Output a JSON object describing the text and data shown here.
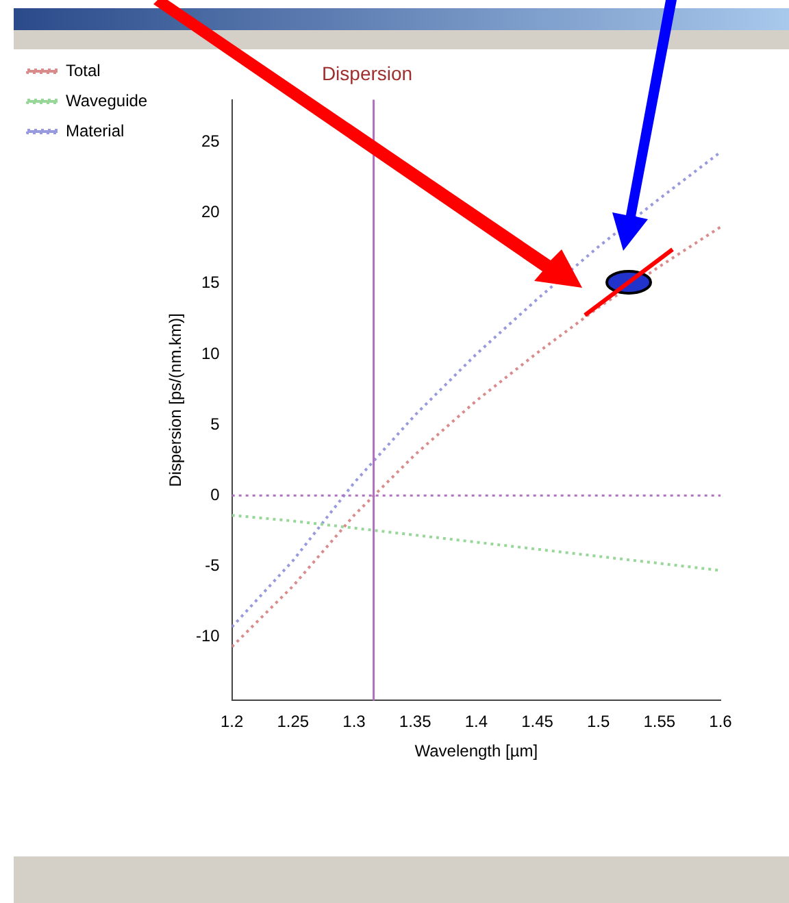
{
  "chart_data": {
    "type": "line",
    "title": "Dispersion",
    "xlabel": "Wavelength [µm]",
    "ylabel": "Dispersion [ps/(nm.km)]",
    "x": [
      1.2,
      1.25,
      1.3,
      1.35,
      1.4,
      1.45,
      1.5,
      1.55,
      1.6
    ],
    "series": [
      {
        "name": "Total",
        "color": "#d98c8c",
        "values": [
          -10.7,
          -6.4,
          -1.4,
          2.9,
          6.7,
          10.1,
          13.3,
          16.2,
          19.0
        ]
      },
      {
        "name": "Waveguide",
        "color": "#99d699",
        "values": [
          -1.4,
          -1.8,
          -2.3,
          -2.8,
          -3.3,
          -3.8,
          -4.3,
          -4.8,
          -5.3
        ]
      },
      {
        "name": "Material",
        "color": "#9999dd",
        "values": [
          -9.3,
          -4.6,
          0.9,
          5.7,
          10.0,
          13.9,
          17.6,
          21.0,
          24.3
        ]
      }
    ],
    "xlim": [
      1.2,
      1.6
    ],
    "xticks": [
      1.2,
      1.25,
      1.3,
      1.35,
      1.4,
      1.45,
      1.5,
      1.55,
      1.6
    ],
    "ylim": [
      -14.5,
      28
    ],
    "yticks": [
      -10,
      -5,
      0,
      5,
      10,
      15,
      20,
      25
    ],
    "ref_lines": [
      {
        "axis": "y",
        "value": 0,
        "color": "#b070c0",
        "line_style": "dotted"
      },
      {
        "axis": "x",
        "value": 1.316,
        "color": "#b070c0",
        "line_style": "solid"
      }
    ],
    "grid": false,
    "legend": "top left",
    "marker": "none",
    "line_style": "dotted"
  }
}
